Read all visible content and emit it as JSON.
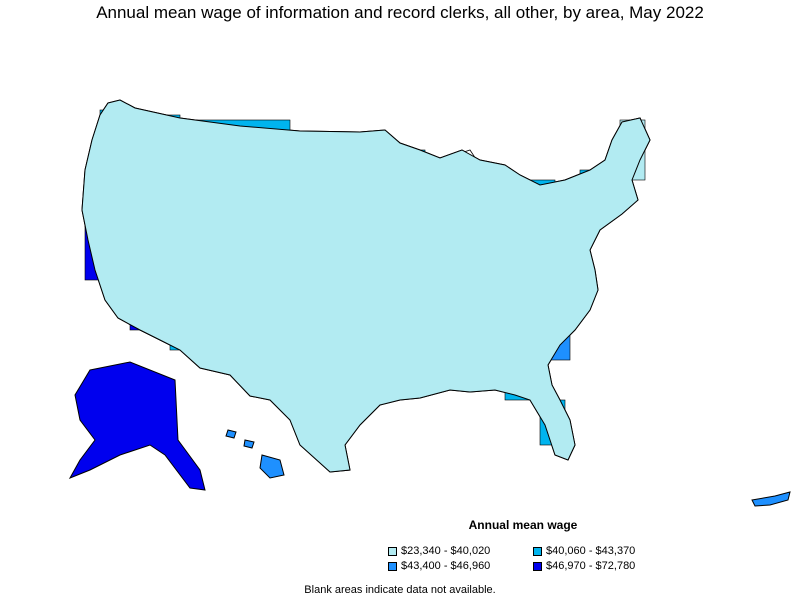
{
  "title": "Annual mean wage of information and record clerks, all other, by area, May 2022",
  "legend": {
    "title": "Annual mean wage",
    "items": [
      {
        "label": "$23,340 - $40,020",
        "color": "#b2ebf2"
      },
      {
        "label": "$40,060 - $43,370",
        "color": "#00b4ee"
      },
      {
        "label": "$43,400 - $46,960",
        "color": "#1e90ff"
      },
      {
        "label": "$46,970 - $72,780",
        "color": "#0000ee"
      }
    ]
  },
  "note": "Blank areas indicate data not available.",
  "colors": {
    "low": "#b2ebf2",
    "mid_low": "#00b4ee",
    "mid_high": "#1e90ff",
    "high": "#0000ee",
    "blank": "#ffffff",
    "outline": "#000000"
  }
}
